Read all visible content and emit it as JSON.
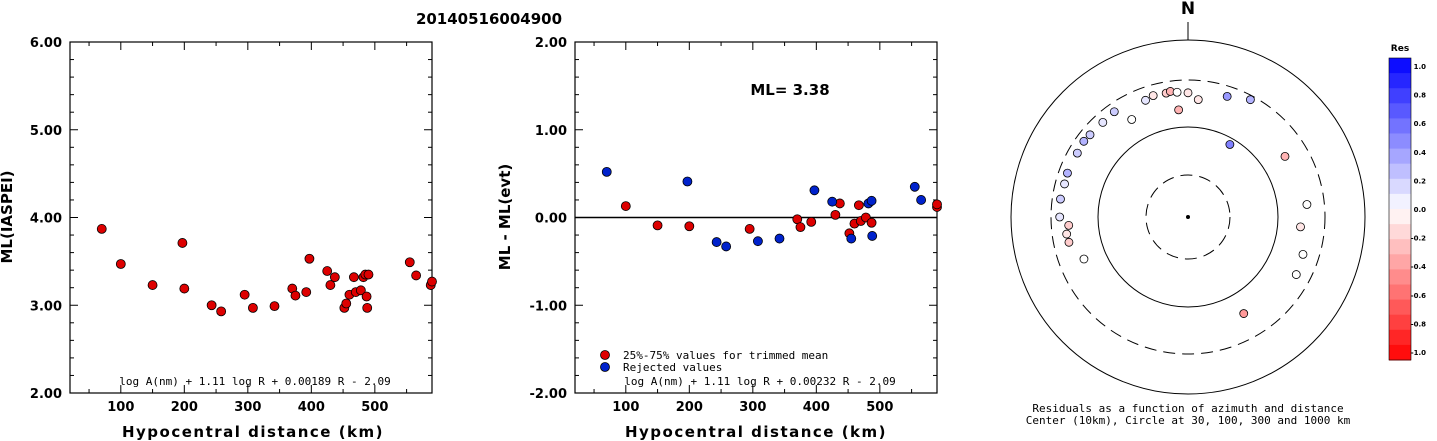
{
  "title": "20140516004900",
  "colors": {
    "event": "#dd0000",
    "rejected": "#0022cc",
    "stroke": "#000000"
  },
  "chart_data": [
    {
      "type": "scatter",
      "ylabel": "ML(IASPEI)",
      "xlabel": "Hypocentral distance (km)",
      "xlim": [
        20,
        590
      ],
      "ylim": [
        2.0,
        6.0
      ],
      "xticks": [
        "100",
        "200",
        "300",
        "400",
        "500"
      ],
      "yticks": [
        "2.00",
        "3.00",
        "4.00",
        "5.00",
        "6.00"
      ],
      "formula": "log A(nm) + 1.11 log R + 0.00189 R - 2.09",
      "points": [
        [
          70,
          3.87
        ],
        [
          100,
          3.47
        ],
        [
          150,
          3.23
        ],
        [
          197,
          3.71
        ],
        [
          200,
          3.19
        ],
        [
          243,
          3.0
        ],
        [
          258,
          2.93
        ],
        [
          295,
          3.12
        ],
        [
          308,
          2.97
        ],
        [
          342,
          2.99
        ],
        [
          370,
          3.19
        ],
        [
          375,
          3.11
        ],
        [
          392,
          3.15
        ],
        [
          397,
          3.53
        ],
        [
          425,
          3.39
        ],
        [
          430,
          3.23
        ],
        [
          437,
          3.32
        ],
        [
          452,
          2.97
        ],
        [
          455,
          3.02
        ],
        [
          460,
          3.12
        ],
        [
          467,
          3.32
        ],
        [
          470,
          3.15
        ],
        [
          478,
          3.17
        ],
        [
          482,
          3.32
        ],
        [
          485,
          3.35
        ],
        [
          487,
          3.1
        ],
        [
          488,
          2.97
        ],
        [
          490,
          3.35
        ],
        [
          555,
          3.49
        ],
        [
          565,
          3.34
        ],
        [
          588,
          3.23
        ],
        [
          592,
          3.27
        ]
      ]
    },
    {
      "type": "scatter",
      "ylabel": "ML - ML(evt)",
      "xlabel": "Hypocentral distance (km)",
      "xlim": [
        20,
        590
      ],
      "ylim": [
        -2.0,
        2.0
      ],
      "xticks": [
        "100",
        "200",
        "300",
        "400",
        "500"
      ],
      "yticks": [
        "-2.00",
        "-1.00",
        "0.00",
        "1.00",
        "2.00"
      ],
      "annotation": "ML= 3.38",
      "legend": [
        "25%-75% values for trimmed mean",
        "Rejected values"
      ],
      "formula": "log A(nm) + 1.11 log R + 0.00232 R - 2.09",
      "series": [
        {
          "name": "25%-75% values for trimmed mean",
          "points": [
            [
              100,
              0.13
            ],
            [
              150,
              -0.09
            ],
            [
              200,
              -0.1
            ],
            [
              295,
              -0.13
            ],
            [
              370,
              -0.02
            ],
            [
              375,
              -0.11
            ],
            [
              392,
              -0.05
            ],
            [
              430,
              0.03
            ],
            [
              437,
              0.16
            ],
            [
              452,
              -0.18
            ],
            [
              460,
              -0.07
            ],
            [
              467,
              0.14
            ],
            [
              470,
              -0.04
            ],
            [
              478,
              0.0
            ],
            [
              487,
              -0.06
            ],
            [
              590,
              0.12
            ],
            [
              592,
              0.15
            ]
          ]
        },
        {
          "name": "Rejected values",
          "points": [
            [
              70,
              0.52
            ],
            [
              197,
              0.41
            ],
            [
              243,
              -0.28
            ],
            [
              258,
              -0.33
            ],
            [
              308,
              -0.27
            ],
            [
              342,
              -0.24
            ],
            [
              397,
              0.31
            ],
            [
              425,
              0.18
            ],
            [
              455,
              -0.24
            ],
            [
              482,
              0.16
            ],
            [
              487,
              0.19
            ],
            [
              488,
              -0.21
            ],
            [
              555,
              0.35
            ],
            [
              565,
              0.2
            ]
          ]
        }
      ]
    },
    {
      "type": "scatter",
      "subtype": "polar",
      "north_label": "N",
      "caption_line1": "Residuals as a function of azimuth and distance",
      "caption_line2": "Center (10km), Circle at 30, 100, 300 and 1000 km",
      "colorbar_title": "Res",
      "colorbar_ticks": [
        "1.0",
        "0.8",
        "0.6",
        "0.4",
        "0.2",
        "0.0",
        "-0.2",
        "-0.4",
        "-0.6",
        "-0.8",
        "-1.0"
      ],
      "points": [
        [
          5,
          612,
          -0.1
        ],
        [
          18,
          770,
          0.4
        ],
        [
          28,
          900,
          0.3
        ],
        [
          58,
          560,
          -0.3
        ],
        [
          84,
          640,
          0.0
        ],
        [
          95,
          540,
          -0.1
        ],
        [
          108,
          662,
          0.0
        ],
        [
          118,
          692,
          0.0
        ],
        [
          150,
          520,
          -0.4
        ],
        [
          248,
          530,
          0.0
        ],
        [
          258,
          676,
          -0.2
        ],
        [
          262,
          690,
          -0.1
        ],
        [
          266,
          640,
          -0.2
        ],
        [
          270,
          800,
          0.1
        ],
        [
          278,
          810,
          0.2
        ],
        [
          285,
          790,
          0.1
        ],
        [
          290,
          800,
          0.3
        ],
        [
          300,
          790,
          0.2
        ],
        [
          306,
          810,
          0.3
        ],
        [
          310,
          792,
          0.2
        ],
        [
          318,
          780,
          0.1
        ],
        [
          325,
          805,
          0.2
        ],
        [
          330,
          535,
          0.0
        ],
        [
          340,
          720,
          0.1
        ],
        [
          344,
          760,
          -0.1
        ],
        [
          350,
          750,
          -0.2
        ],
        [
          352,
          770,
          -0.3
        ],
        [
          355,
          740,
          0.0
        ],
        [
          0,
          720,
          -0.1
        ],
        [
          30,
          260,
          0.5
        ],
        [
          355,
          470,
          -0.3
        ]
      ]
    }
  ]
}
